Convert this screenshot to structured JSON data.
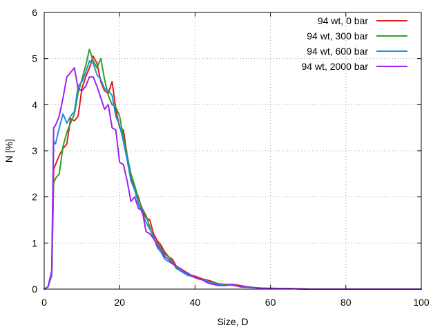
{
  "chart_data": {
    "type": "line",
    "title": "",
    "xlabel": "Size, D",
    "ylabel": "N [%]",
    "xlim": [
      0,
      100
    ],
    "ylim": [
      0,
      6
    ],
    "xticks": [
      0,
      20,
      40,
      60,
      80,
      100
    ],
    "yticks": [
      0,
      1,
      2,
      3,
      4,
      5,
      6
    ],
    "grid": true,
    "legend_position": "top-right",
    "series": [
      {
        "name": "94 wt, 0 bar",
        "color": "#e41a1c",
        "x": [
          0,
          1,
          2,
          2.5,
          3,
          4,
          5,
          6,
          7,
          8,
          9,
          10,
          11,
          12,
          13,
          14,
          15,
          16,
          17,
          18,
          19,
          20,
          21,
          22,
          23,
          24,
          25,
          26,
          27,
          28,
          29,
          30,
          31,
          32,
          33,
          34,
          35,
          36,
          37,
          38,
          39,
          40,
          41,
          42,
          43,
          44,
          45,
          46,
          48,
          50,
          52,
          54,
          56,
          58,
          60,
          65,
          70,
          80,
          90,
          100
        ],
        "values": [
          0,
          0.05,
          0.3,
          2.6,
          2.7,
          2.9,
          3.05,
          3.15,
          3.7,
          3.65,
          3.75,
          4.35,
          4.6,
          4.8,
          5.05,
          4.9,
          4.5,
          4.3,
          4.25,
          4.5,
          3.9,
          3.5,
          3.45,
          2.9,
          2.4,
          2.2,
          2.0,
          1.7,
          1.55,
          1.5,
          1.2,
          1.05,
          0.95,
          0.8,
          0.7,
          0.65,
          0.5,
          0.45,
          0.4,
          0.35,
          0.3,
          0.28,
          0.25,
          0.22,
          0.2,
          0.18,
          0.15,
          0.12,
          0.1,
          0.1,
          0.08,
          0.05,
          0.03,
          0.02,
          0.02,
          0.01,
          0,
          0,
          0,
          0
        ]
      },
      {
        "name": "94 wt, 300 bar",
        "color": "#2ca02c",
        "x": [
          0,
          1,
          2,
          2.5,
          3,
          4,
          5,
          6,
          7,
          8,
          9,
          10,
          11,
          12,
          13,
          14,
          15,
          16,
          17,
          18,
          19,
          20,
          21,
          22,
          23,
          24,
          25,
          26,
          27,
          28,
          29,
          30,
          31,
          32,
          33,
          34,
          35,
          36,
          37,
          38,
          39,
          40,
          41,
          42,
          43,
          44,
          45,
          46,
          48,
          50,
          52,
          54,
          56,
          58,
          60,
          65,
          70,
          80,
          90,
          100
        ],
        "values": [
          0,
          0.05,
          0.3,
          2.3,
          2.4,
          2.5,
          3.1,
          3.4,
          3.6,
          3.8,
          4.25,
          4.55,
          4.85,
          5.2,
          4.95,
          4.8,
          5.0,
          4.55,
          4.2,
          4.0,
          3.95,
          3.75,
          3.3,
          2.9,
          2.5,
          2.25,
          1.95,
          1.75,
          1.6,
          1.35,
          1.1,
          1.0,
          0.9,
          0.75,
          0.7,
          0.6,
          0.45,
          0.4,
          0.38,
          0.33,
          0.3,
          0.25,
          0.22,
          0.2,
          0.18,
          0.16,
          0.14,
          0.12,
          0.1,
          0.08,
          0.06,
          0.05,
          0.03,
          0.02,
          0.01,
          0.01,
          0,
          0,
          0,
          0
        ]
      },
      {
        "name": "94 wt, 600 bar",
        "color": "#1f8fdc",
        "x": [
          0,
          1,
          2,
          2.5,
          3,
          4,
          5,
          6,
          7,
          8,
          9,
          10,
          11,
          12,
          13,
          14,
          15,
          16,
          17,
          18,
          19,
          20,
          21,
          22,
          23,
          24,
          25,
          26,
          27,
          28,
          29,
          30,
          31,
          32,
          33,
          34,
          35,
          36,
          37,
          38,
          39,
          40,
          41,
          42,
          43,
          44,
          45,
          46,
          48,
          50,
          52,
          54,
          56,
          58,
          60,
          65,
          70,
          80,
          90,
          100
        ],
        "values": [
          0,
          0.05,
          0.3,
          3.2,
          3.15,
          3.5,
          3.8,
          3.6,
          3.75,
          3.85,
          4.4,
          4.5,
          4.7,
          4.95,
          4.9,
          4.65,
          4.55,
          4.35,
          4.3,
          4.2,
          3.75,
          3.55,
          3.2,
          2.8,
          2.35,
          2.15,
          1.85,
          1.65,
          1.45,
          1.3,
          1.15,
          0.9,
          0.8,
          0.65,
          0.6,
          0.55,
          0.5,
          0.4,
          0.35,
          0.3,
          0.28,
          0.25,
          0.22,
          0.2,
          0.18,
          0.15,
          0.12,
          0.1,
          0.08,
          0.1,
          0.05,
          0.04,
          0.03,
          0.02,
          0.01,
          0.01,
          0,
          0,
          0,
          0
        ]
      },
      {
        "name": "94 wt, 2000 bar",
        "color": "#a020f0",
        "x": [
          0,
          1,
          2,
          2.5,
          3,
          4,
          5,
          6,
          7,
          8,
          9,
          10,
          11,
          12,
          13,
          14,
          15,
          16,
          17,
          18,
          19,
          20,
          21,
          22,
          23,
          24,
          25,
          26,
          27,
          28,
          29,
          30,
          31,
          32,
          33,
          34,
          35,
          36,
          37,
          38,
          39,
          40,
          41,
          42,
          43,
          44,
          45,
          46,
          48,
          50,
          52,
          54,
          56,
          58,
          60,
          65,
          70,
          80,
          90,
          100
        ],
        "values": [
          0,
          0.05,
          0.4,
          3.5,
          3.55,
          3.75,
          4.15,
          4.6,
          4.7,
          4.8,
          4.35,
          4.3,
          4.4,
          4.6,
          4.6,
          4.4,
          4.15,
          3.9,
          4.0,
          3.5,
          3.45,
          2.75,
          2.7,
          2.35,
          1.9,
          2.0,
          1.75,
          1.7,
          1.25,
          1.2,
          1.1,
          0.95,
          0.85,
          0.7,
          0.65,
          0.55,
          0.5,
          0.45,
          0.38,
          0.35,
          0.3,
          0.25,
          0.22,
          0.2,
          0.15,
          0.12,
          0.1,
          0.08,
          0.08,
          0.1,
          0.05,
          0.04,
          0.03,
          0.02,
          0.01,
          0.01,
          0,
          0,
          0,
          0
        ]
      }
    ]
  }
}
